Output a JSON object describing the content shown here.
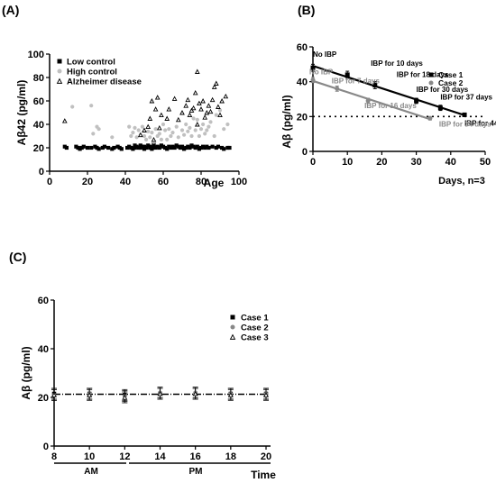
{
  "chart_data": [
    {
      "panel": "(A)",
      "type": "scatter",
      "ylabel": "Aβ42 (pg/ml)",
      "xlabel": "Age",
      "xlim": [
        0,
        100
      ],
      "ylim": [
        0,
        100
      ],
      "xticks": [
        "0",
        "20",
        "40",
        "60",
        "80",
        "100"
      ],
      "yticks": [
        "0",
        "20",
        "40",
        "60",
        "80",
        "100"
      ],
      "legend_position": "top-left",
      "series": [
        {
          "name": "Low control",
          "marker": "square",
          "color": "#000000",
          "points": [
            [
              8,
              21
            ],
            [
              9,
              20
            ],
            [
              14,
              21
            ],
            [
              15,
              20
            ],
            [
              16,
              19
            ],
            [
              17,
              20
            ],
            [
              18,
              21
            ],
            [
              20,
              20
            ],
            [
              22,
              20
            ],
            [
              24,
              21
            ],
            [
              25,
              20
            ],
            [
              26,
              19
            ],
            [
              28,
              20
            ],
            [
              29,
              21
            ],
            [
              31,
              20
            ],
            [
              33,
              19
            ],
            [
              34,
              20
            ],
            [
              36,
              21
            ],
            [
              37,
              20
            ],
            [
              38,
              19
            ],
            [
              41,
              20
            ],
            [
              42,
              21
            ],
            [
              43,
              20
            ],
            [
              44,
              19
            ],
            [
              45,
              20
            ],
            [
              45,
              22
            ],
            [
              46,
              21
            ],
            [
              47,
              20
            ],
            [
              48,
              20
            ],
            [
              48,
              22
            ],
            [
              49,
              21
            ],
            [
              50,
              19
            ],
            [
              50,
              21
            ],
            [
              51,
              20
            ],
            [
              52,
              22
            ],
            [
              53,
              20
            ],
            [
              53,
              21
            ],
            [
              54,
              19
            ],
            [
              55,
              21
            ],
            [
              55,
              23
            ],
            [
              56,
              20
            ],
            [
              57,
              21
            ],
            [
              58,
              20
            ],
            [
              59,
              22
            ],
            [
              60,
              21
            ],
            [
              61,
              20
            ],
            [
              62,
              19
            ],
            [
              63,
              21
            ],
            [
              64,
              20
            ],
            [
              65,
              21
            ],
            [
              66,
              20
            ],
            [
              67,
              22
            ],
            [
              68,
              21
            ],
            [
              69,
              20
            ],
            [
              70,
              21
            ],
            [
              71,
              19
            ],
            [
              72,
              20
            ],
            [
              73,
              21
            ],
            [
              74,
              20
            ],
            [
              75,
              22
            ],
            [
              76,
              21
            ],
            [
              77,
              20
            ],
            [
              78,
              21
            ],
            [
              79,
              19
            ],
            [
              80,
              20
            ],
            [
              81,
              21
            ],
            [
              82,
              20
            ],
            [
              83,
              21
            ],
            [
              84,
              20
            ],
            [
              86,
              21
            ],
            [
              88,
              20
            ],
            [
              89,
              21
            ],
            [
              91,
              20
            ],
            [
              92,
              19
            ],
            [
              94,
              20
            ],
            [
              95,
              20
            ]
          ]
        },
        {
          "name": "High control",
          "marker": "circle",
          "color": "#c0c0c0",
          "points": [
            [
              12,
              55
            ],
            [
              22,
              56
            ],
            [
              23,
              32
            ],
            [
              25,
              38
            ],
            [
              26,
              36
            ],
            [
              33,
              29
            ],
            [
              42,
              38
            ],
            [
              43,
              30
            ],
            [
              44,
              33
            ],
            [
              45,
              37
            ],
            [
              46,
              29
            ],
            [
              47,
              35
            ],
            [
              48,
              31
            ],
            [
              49,
              38
            ],
            [
              50,
              30
            ],
            [
              51,
              27
            ],
            [
              52,
              34
            ],
            [
              53,
              29
            ],
            [
              54,
              33
            ],
            [
              55,
              25
            ],
            [
              56,
              36
            ],
            [
              57,
              30
            ],
            [
              58,
              32
            ],
            [
              59,
              27
            ],
            [
              60,
              40
            ],
            [
              61,
              35
            ],
            [
              62,
              27
            ],
            [
              63,
              36
            ],
            [
              64,
              30
            ],
            [
              65,
              33
            ],
            [
              67,
              38
            ],
            [
              68,
              29
            ],
            [
              70,
              35
            ],
            [
              71,
              31
            ],
            [
              72,
              40
            ],
            [
              73,
              34
            ],
            [
              74,
              37
            ],
            [
              75,
              30
            ],
            [
              76,
              45
            ],
            [
              77,
              35
            ],
            [
              78,
              44
            ],
            [
              79,
              30
            ],
            [
              80,
              36
            ],
            [
              81,
              40
            ],
            [
              82,
              32
            ],
            [
              83,
              35
            ],
            [
              84,
              38
            ],
            [
              85,
              42
            ],
            [
              87,
              30
            ],
            [
              88,
              48
            ],
            [
              90,
              52
            ],
            [
              92,
              36
            ],
            [
              94,
              40
            ]
          ]
        },
        {
          "name": "Alzheimer disease",
          "marker": "triangle",
          "color": "#000000",
          "points": [
            [
              8,
              43
            ],
            [
              48,
              31
            ],
            [
              50,
              35
            ],
            [
              52,
              38
            ],
            [
              53,
              45
            ],
            [
              54,
              60
            ],
            [
              55,
              27
            ],
            [
              56,
              53
            ],
            [
              57,
              63
            ],
            [
              58,
              37
            ],
            [
              59,
              48
            ],
            [
              62,
              45
            ],
            [
              63,
              53
            ],
            [
              66,
              62
            ],
            [
              68,
              44
            ],
            [
              70,
              50
            ],
            [
              72,
              56
            ],
            [
              73,
              61
            ],
            [
              74,
              48
            ],
            [
              75,
              52
            ],
            [
              76,
              54
            ],
            [
              77,
              67
            ],
            [
              78,
              40
            ],
            [
              78,
              85
            ],
            [
              79,
              58
            ],
            [
              80,
              53
            ],
            [
              81,
              60
            ],
            [
              82,
              46
            ],
            [
              83,
              50
            ],
            [
              84,
              56
            ],
            [
              85,
              51
            ],
            [
              86,
              61
            ],
            [
              87,
              72
            ],
            [
              88,
              75
            ],
            [
              89,
              55
            ],
            [
              90,
              48
            ],
            [
              91,
              60
            ],
            [
              93,
              64
            ]
          ]
        }
      ]
    },
    {
      "panel": "(B)",
      "type": "scatter",
      "ylabel": "Aβ (pg/ml)",
      "xlabel": "Days, n=3",
      "xlim": [
        0,
        50
      ],
      "ylim": [
        0,
        60
      ],
      "xticks": [
        "0",
        "10",
        "20",
        "30",
        "40",
        "50"
      ],
      "yticks": [
        "0",
        "20",
        "40",
        "60"
      ],
      "legend_position": "top-right",
      "threshold_y": 20,
      "series": [
        {
          "name": "Case 1",
          "marker": "square",
          "color": "#000000",
          "points": [
            [
              0,
              48
            ],
            [
              10,
              44
            ],
            [
              18,
              38
            ],
            [
              30,
              29
            ],
            [
              37,
              25
            ],
            [
              44,
              21
            ]
          ],
          "errors": [
            2,
            2,
            2,
            1.5,
            1.5,
            1
          ]
        },
        {
          "name": "Case 2",
          "marker": "circle",
          "color": "#888888",
          "points": [
            [
              0,
              41
            ],
            [
              7,
              36
            ],
            [
              16,
              29
            ],
            [
              34,
              19
            ]
          ],
          "errors": [
            1.5,
            1.5,
            1.5,
            1
          ]
        }
      ],
      "annotations": [
        {
          "text": "No IBP",
          "x": 0,
          "y": 48,
          "color": "#000000"
        },
        {
          "text": "IBP for 10 days",
          "x": 10,
          "y": 44,
          "color": "#000000"
        },
        {
          "text": "IBP for 18 days",
          "x": 18,
          "y": 38,
          "color": "#000000"
        },
        {
          "text": "IBP for 30 days",
          "x": 30,
          "y": 29,
          "color": "#000000"
        },
        {
          "text": "IBP for 37 days",
          "x": 37,
          "y": 25,
          "color": "#000000"
        },
        {
          "text": "IBP for 44 days",
          "x": 44,
          "y": 21,
          "color": "#000000"
        },
        {
          "text": "No IBP",
          "x": 0,
          "y": 41,
          "color": "#888888"
        },
        {
          "text": "IBP for 7 days",
          "x": 7,
          "y": 36,
          "color": "#888888"
        },
        {
          "text": "IBP for 16 days",
          "x": 16,
          "y": 29,
          "color": "#888888"
        },
        {
          "text": "IBP for 34 days",
          "x": 34,
          "y": 19,
          "color": "#888888"
        }
      ]
    },
    {
      "panel": "(C)",
      "type": "scatter",
      "ylabel": "Aβ (pg/ml)",
      "xlabel": "Time",
      "xlim": [
        8,
        20
      ],
      "ylim": [
        0,
        60
      ],
      "xticks": [
        "8",
        "10",
        "12",
        "14",
        "16",
        "18",
        "20"
      ],
      "yticks": [
        "0",
        "20",
        "40",
        "60"
      ],
      "period_labels": [
        "AM",
        "PM"
      ],
      "legend_position": "right",
      "series": [
        {
          "name": "Case 1",
          "marker": "square",
          "color": "#000000",
          "points": [
            [
              8,
              21.5
            ],
            [
              10,
              21.5
            ],
            [
              12,
              21
            ],
            [
              14,
              21.5
            ],
            [
              16,
              21.5
            ],
            [
              18,
              21.5
            ],
            [
              20,
              21.5
            ]
          ]
        },
        {
          "name": "Case 2",
          "marker": "circle",
          "color": "#888888",
          "points": [
            [
              8,
              21
            ],
            [
              10,
              21.5
            ],
            [
              12,
              20.5
            ],
            [
              14,
              22
            ],
            [
              16,
              22
            ],
            [
              18,
              21.5
            ],
            [
              20,
              21.5
            ]
          ]
        },
        {
          "name": "Case 3",
          "marker": "triangle",
          "color": "#000000",
          "points": [
            [
              8,
              21
            ],
            [
              10,
              21
            ],
            [
              12,
              20
            ],
            [
              14,
              21.5
            ],
            [
              16,
              21.5
            ],
            [
              18,
              21
            ],
            [
              20,
              21
            ]
          ]
        }
      ],
      "mean_line_y": 21.3
    }
  ]
}
